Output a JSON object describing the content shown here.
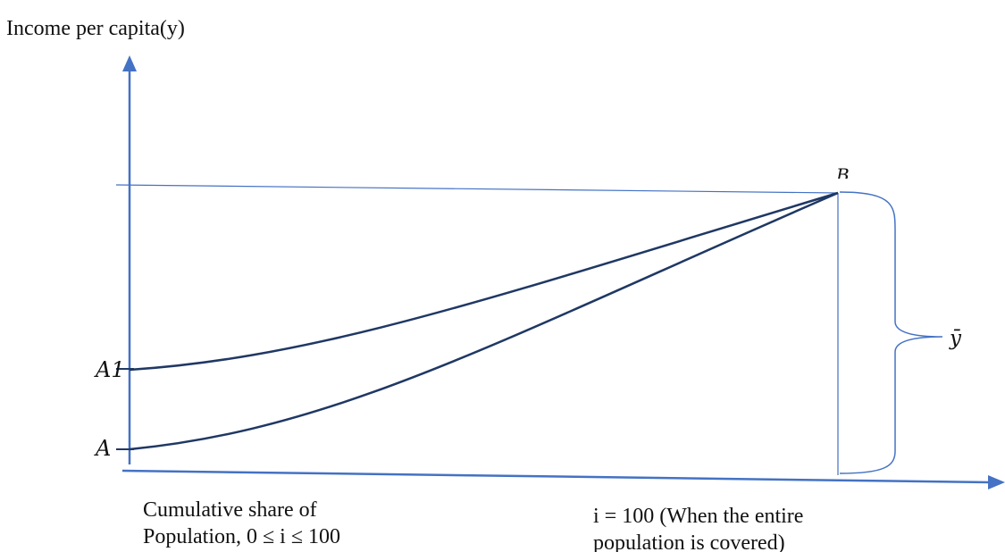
{
  "diagram": {
    "y_axis_title": "Income per capita(y)",
    "point_labels": {
      "a1": "A1",
      "a": "A",
      "b": "B"
    },
    "mean_label": "ȳ",
    "x_caption_left": {
      "line1": "Cumulative share of",
      "line2": "Population, 0 ≤ i ≤ 100"
    },
    "x_caption_right": {
      "line1": "i = 100 (When the entire",
      "line2": "population is covered)"
    },
    "colors": {
      "axis": "#4472c4",
      "curve": "#1f3864",
      "text": "#111111"
    }
  }
}
